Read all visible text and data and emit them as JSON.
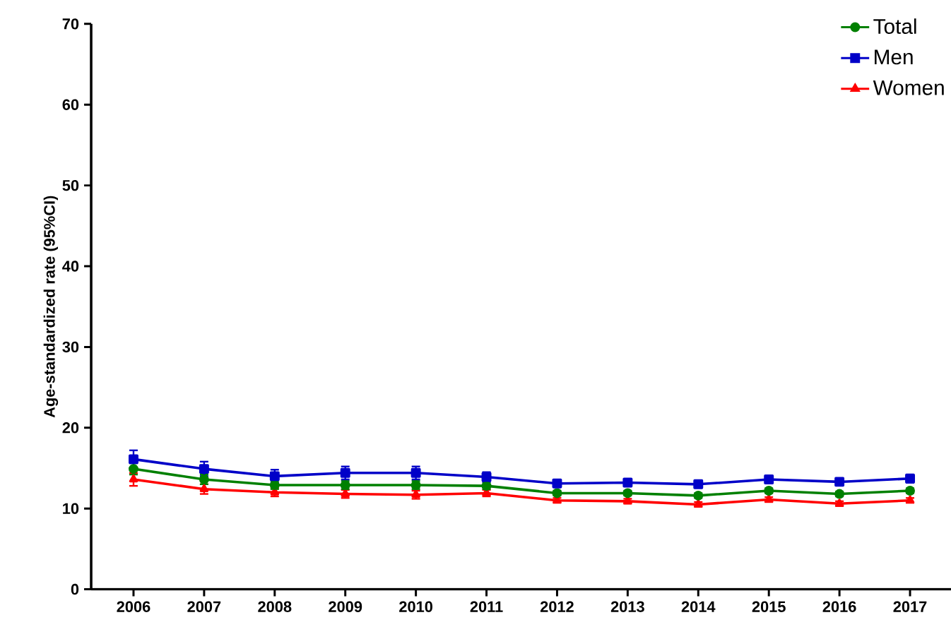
{
  "chart_data": {
    "type": "line",
    "ylabel": "Age-standardized rate  (95%CI)",
    "categories": [
      "2006",
      "2007",
      "2008",
      "2009",
      "2010",
      "2011",
      "2012",
      "2013",
      "2014",
      "2015",
      "2016",
      "2017"
    ],
    "series": [
      {
        "name": "Total",
        "color": "#008000",
        "marker": "circle",
        "values": [
          14.9,
          13.6,
          12.9,
          12.9,
          12.9,
          12.8,
          11.9,
          11.9,
          11.6,
          12.2,
          11.8,
          12.2
        ],
        "errors": [
          0.7,
          0.6,
          0.5,
          0.5,
          0.5,
          0.4,
          0.3,
          0.3,
          0.3,
          0.3,
          0.3,
          0.3
        ]
      },
      {
        "name": "Men",
        "color": "#0000c8",
        "marker": "square",
        "values": [
          16.1,
          14.9,
          14.0,
          14.4,
          14.4,
          13.9,
          13.1,
          13.2,
          13.0,
          13.6,
          13.3,
          13.7
        ],
        "errors": [
          1.1,
          0.9,
          0.8,
          0.8,
          0.8,
          0.6,
          0.4,
          0.4,
          0.4,
          0.4,
          0.4,
          0.5
        ]
      },
      {
        "name": "Women",
        "color": "#ff0000",
        "marker": "triangle",
        "values": [
          13.6,
          12.4,
          12.0,
          11.8,
          11.7,
          11.9,
          11.0,
          10.9,
          10.5,
          11.1,
          10.6,
          11.0
        ],
        "errors": [
          0.8,
          0.6,
          0.5,
          0.5,
          0.5,
          0.4,
          0.3,
          0.3,
          0.3,
          0.3,
          0.3,
          0.3
        ]
      }
    ],
    "ylim": [
      0,
      70
    ],
    "yticks": [
      0,
      10,
      20,
      30,
      40,
      50,
      60,
      70
    ],
    "legend": "top right",
    "grid": false
  }
}
